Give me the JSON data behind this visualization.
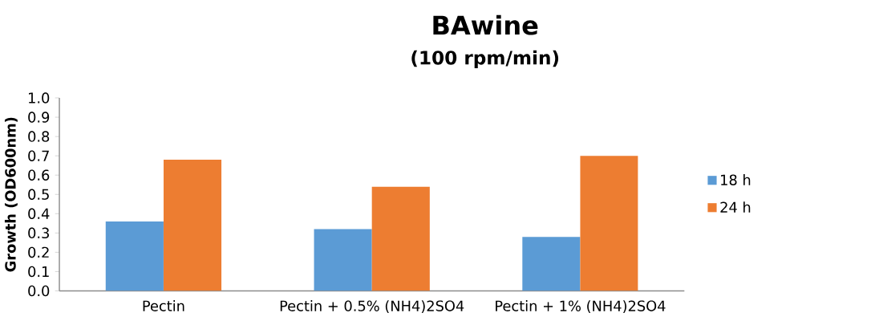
{
  "chart_data": {
    "type": "bar",
    "title": "BAwine",
    "subtitle": "(100 rpm/min)",
    "ylabel": "Growth (OD600nm)",
    "categories": [
      "Pectin",
      "Pectin + 0.5% (NH4)2SO4",
      "Pectin + 1% (NH4)2SO4"
    ],
    "series": [
      {
        "name": "18 h",
        "color": "#5b9bd5",
        "values": [
          0.36,
          0.32,
          0.28
        ]
      },
      {
        "name": "24 h",
        "color": "#ed7d31",
        "values": [
          0.68,
          0.54,
          0.7
        ]
      }
    ],
    "ylim": [
      0,
      1
    ],
    "yticks": [
      {
        "value": 0,
        "label": "0.0"
      },
      0.1,
      0.2,
      0.3,
      0.4,
      0.5,
      0.6,
      0.7,
      0.8,
      0.9,
      {
        "value": 1,
        "label": "1.0"
      }
    ],
    "grid": false,
    "legend": "right"
  }
}
